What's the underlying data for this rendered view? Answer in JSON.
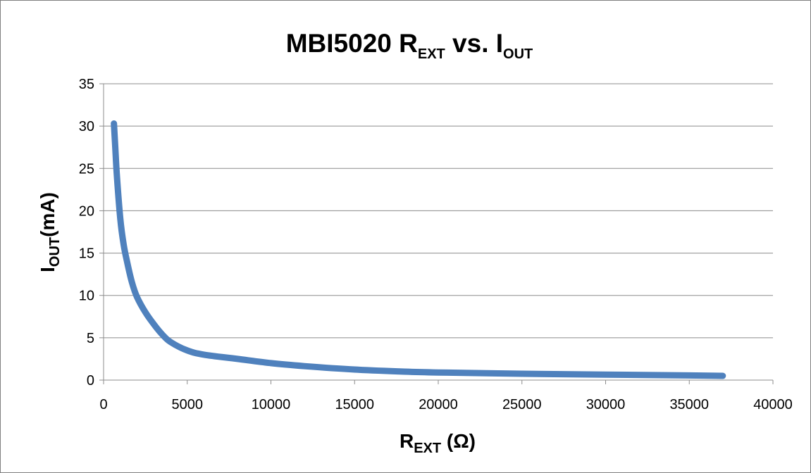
{
  "chart_data": {
    "type": "line",
    "title": {
      "main": "MBI5020 R",
      "main_sub": "EXT",
      "middle": " vs. I",
      "end_sub": "OUT"
    },
    "xlabel": {
      "main": "R",
      "sub": "EXT",
      "rest": " (Ω)"
    },
    "ylabel": {
      "main": "I",
      "sub": "OUT",
      "rest": "(mA)"
    },
    "xlim": [
      0,
      40000
    ],
    "ylim": [
      0,
      35
    ],
    "x_ticks": [
      "0",
      "5000",
      "10000",
      "15000",
      "20000",
      "25000",
      "30000",
      "35000",
      "40000"
    ],
    "y_ticks": [
      "0",
      "5",
      "10",
      "15",
      "20",
      "25",
      "30",
      "35"
    ],
    "grid": "horizontal",
    "legend": "none",
    "series_color": "#4f81bd",
    "series": [
      {
        "x": [
          620,
          700,
          800,
          1000,
          1200,
          1400,
          1700,
          2000,
          2500,
          3000,
          3500,
          4000,
          5000,
          6000,
          8000,
          10000,
          12000,
          15000,
          18000,
          20000,
          25000,
          30000,
          35000,
          37000
        ],
        "values": [
          30.3,
          27.5,
          24.0,
          19.0,
          16.0,
          14.0,
          11.5,
          9.8,
          8.0,
          6.6,
          5.4,
          4.5,
          3.5,
          3.0,
          2.5,
          2.0,
          1.65,
          1.25,
          1.0,
          0.9,
          0.75,
          0.65,
          0.55,
          0.5
        ]
      }
    ]
  }
}
